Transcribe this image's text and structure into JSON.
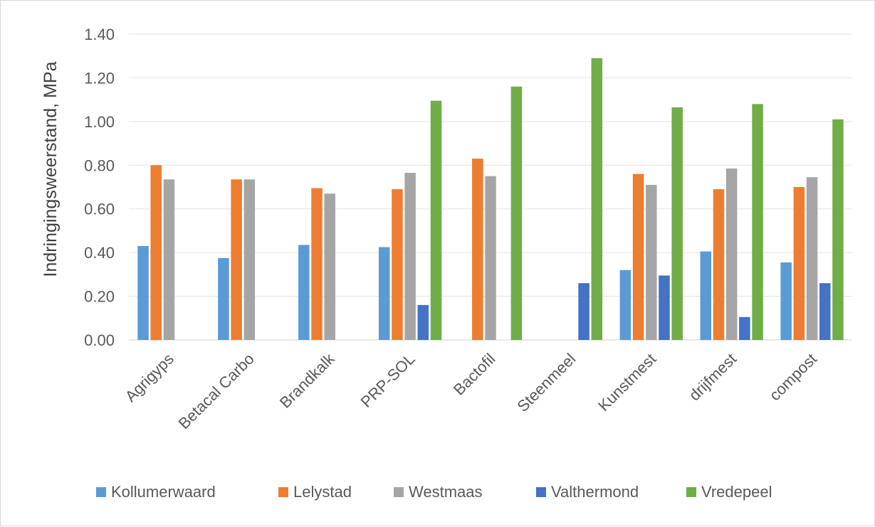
{
  "chart_data": {
    "type": "bar",
    "title": "",
    "xlabel": "",
    "ylabel": "Indringingsweerstand, MPa",
    "ylim": [
      0,
      1.4
    ],
    "yticks": [
      "0.00",
      "0.20",
      "0.40",
      "0.60",
      "0.80",
      "1.00",
      "1.20",
      "1.40"
    ],
    "grid": true,
    "legend_position": "bottom",
    "categories": [
      "Agrigyps",
      "Betacal Carbo",
      "Brandkalk",
      "PRP-SOL",
      "Bactofil",
      "Steenmeel",
      "Kunstmest",
      "drijfmest",
      "compost"
    ],
    "series": [
      {
        "name": "Kollumerwaard",
        "color": "#5b9bd5",
        "values": [
          0.43,
          0.375,
          0.435,
          0.425,
          null,
          null,
          0.32,
          0.405,
          0.355
        ]
      },
      {
        "name": "Lelystad",
        "color": "#ed7d31",
        "values": [
          0.8,
          0.735,
          0.695,
          0.69,
          0.83,
          null,
          0.76,
          0.69,
          0.7
        ]
      },
      {
        "name": "Westmaas",
        "color": "#a5a5a5",
        "values": [
          0.735,
          0.735,
          0.67,
          0.765,
          0.75,
          null,
          0.71,
          0.785,
          0.745
        ]
      },
      {
        "name": "Valthermond",
        "color": "#4472c4",
        "values": [
          null,
          null,
          null,
          0.16,
          null,
          0.26,
          0.295,
          0.105,
          0.26
        ]
      },
      {
        "name": "Vredepeel",
        "color": "#70ad47",
        "values": [
          null,
          null,
          null,
          1.095,
          1.16,
          1.29,
          1.065,
          1.08,
          1.01
        ]
      }
    ]
  }
}
